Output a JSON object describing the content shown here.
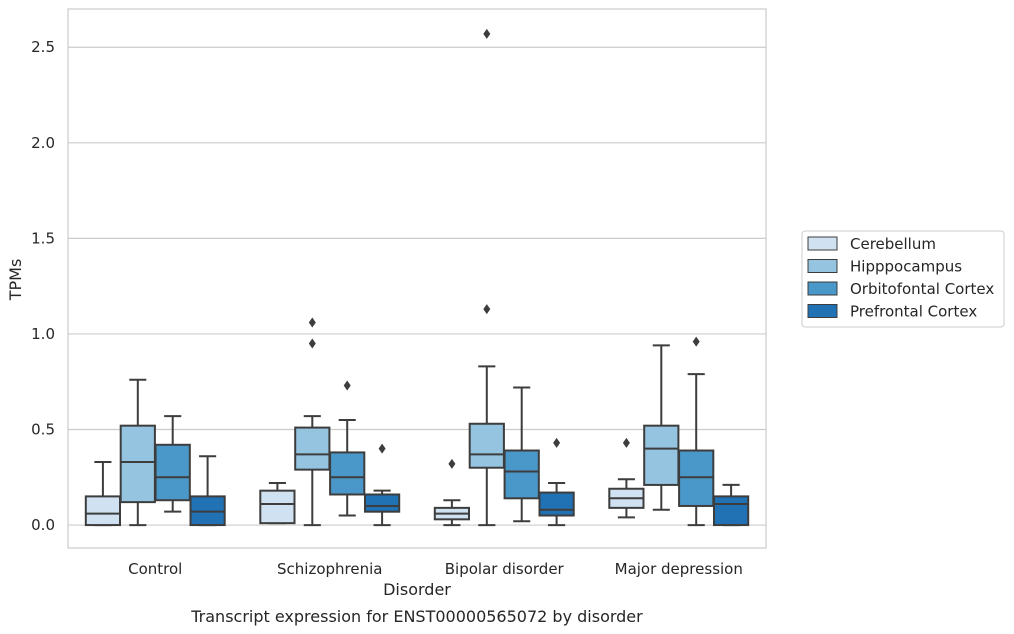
{
  "chart_data": {
    "type": "box",
    "categories": [
      "Control",
      "Schizophrenia",
      "Bipolar disorder",
      "Major depression"
    ],
    "xlabel": "Disorder",
    "ylabel": "TPMs",
    "ylim": [
      -0.12,
      2.7
    ],
    "yticks": [
      0.0,
      0.5,
      1.0,
      1.5,
      2.0,
      2.5
    ],
    "ytick_labels": [
      "0.0",
      "0.5",
      "1.0",
      "1.5",
      "2.0",
      "2.5"
    ],
    "grid": "horizontal",
    "legend_position": "right",
    "series": [
      {
        "name": "Cerebellum",
        "color": "#d0e1f2",
        "boxes": [
          {
            "whislo": 0.0,
            "q1": 0.0,
            "med": 0.06,
            "q3": 0.15,
            "whishi": 0.33,
            "fliers": []
          },
          {
            "whislo": 0.01,
            "q1": 0.01,
            "med": 0.11,
            "q3": 0.18,
            "whishi": 0.22,
            "fliers": []
          },
          {
            "whislo": 0.0,
            "q1": 0.03,
            "med": 0.06,
            "q3": 0.09,
            "whishi": 0.13,
            "fliers": [
              0.32
            ]
          },
          {
            "whislo": 0.04,
            "q1": 0.09,
            "med": 0.14,
            "q3": 0.19,
            "whishi": 0.24,
            "fliers": [
              0.43
            ]
          }
        ]
      },
      {
        "name": "Hipppocampus",
        "color": "#94c4df",
        "boxes": [
          {
            "whislo": 0.0,
            "q1": 0.12,
            "med": 0.33,
            "q3": 0.52,
            "whishi": 0.76,
            "fliers": []
          },
          {
            "whislo": 0.0,
            "q1": 0.29,
            "med": 0.37,
            "q3": 0.51,
            "whishi": 0.57,
            "fliers": [
              0.95,
              1.06
            ]
          },
          {
            "whislo": 0.0,
            "q1": 0.3,
            "med": 0.37,
            "q3": 0.53,
            "whishi": 0.83,
            "fliers": [
              1.13,
              2.57
            ]
          },
          {
            "whislo": 0.08,
            "q1": 0.21,
            "med": 0.4,
            "q3": 0.52,
            "whishi": 0.94,
            "fliers": []
          }
        ]
      },
      {
        "name": "Orbitofontal Cortex",
        "color": "#4a98c9",
        "boxes": [
          {
            "whislo": 0.07,
            "q1": 0.13,
            "med": 0.25,
            "q3": 0.42,
            "whishi": 0.57,
            "fliers": []
          },
          {
            "whislo": 0.05,
            "q1": 0.16,
            "med": 0.25,
            "q3": 0.38,
            "whishi": 0.55,
            "fliers": [
              0.73
            ]
          },
          {
            "whislo": 0.02,
            "q1": 0.14,
            "med": 0.28,
            "q3": 0.39,
            "whishi": 0.72,
            "fliers": []
          },
          {
            "whislo": 0.0,
            "q1": 0.1,
            "med": 0.25,
            "q3": 0.39,
            "whishi": 0.79,
            "fliers": [
              0.96
            ]
          }
        ]
      },
      {
        "name": "Prefrontal Cortex",
        "color": "#2171b5",
        "boxes": [
          {
            "whislo": 0.0,
            "q1": 0.0,
            "med": 0.07,
            "q3": 0.15,
            "whishi": 0.36,
            "fliers": []
          },
          {
            "whislo": 0.0,
            "q1": 0.07,
            "med": 0.1,
            "q3": 0.16,
            "whishi": 0.18,
            "fliers": [
              0.4
            ]
          },
          {
            "whislo": 0.0,
            "q1": 0.05,
            "med": 0.08,
            "q3": 0.17,
            "whishi": 0.22,
            "fliers": [
              0.43
            ]
          },
          {
            "whislo": 0.0,
            "q1": 0.0,
            "med": 0.11,
            "q3": 0.15,
            "whishi": 0.21,
            "fliers": []
          }
        ]
      }
    ]
  },
  "caption": "Transcript expression for ENST00000565072 by disorder"
}
